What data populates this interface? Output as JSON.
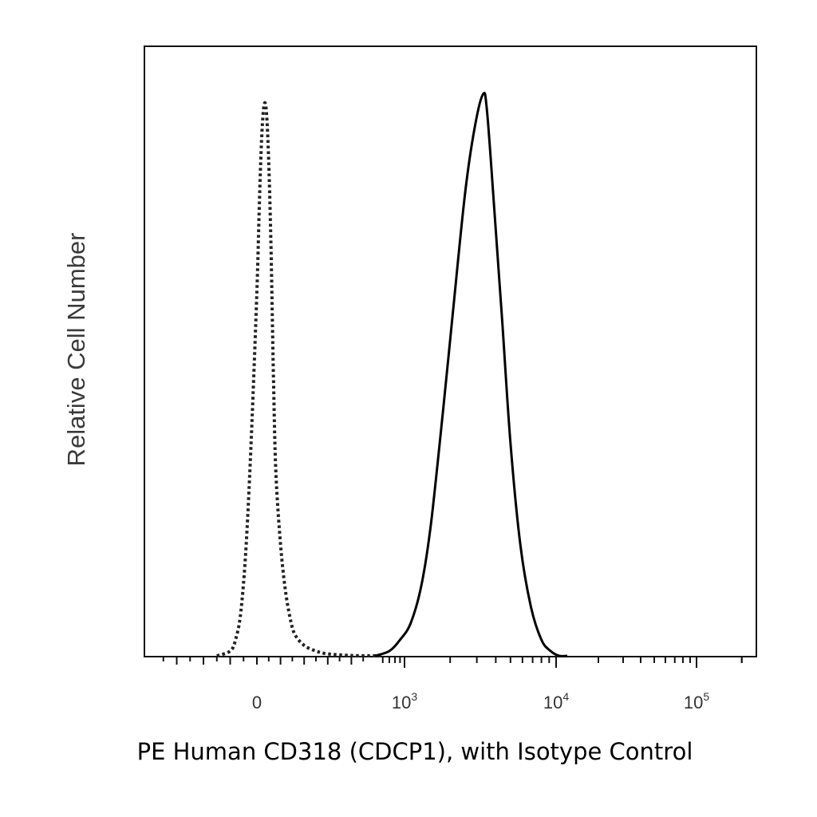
{
  "chart_data": {
    "type": "line",
    "title": "",
    "xlabel": "PE Human CD318 (CDCP1), with Isotype Control",
    "ylabel": "Relative Cell Number",
    "x_scale": "biexponential",
    "xlim": [
      -400,
      250000
    ],
    "ylim": [
      0,
      1.1
    ],
    "x_ticks": [
      {
        "value": 0,
        "base": "0",
        "exp": ""
      },
      {
        "value": 1000,
        "base": "10",
        "exp": "3"
      },
      {
        "value": 10000,
        "base": "10",
        "exp": "4"
      },
      {
        "value": 100000,
        "base": "10",
        "exp": "5"
      }
    ],
    "grid": false,
    "legend": "none",
    "series": [
      {
        "style": "dotted",
        "color": "#222222",
        "x": [
          -150,
          -100,
          -80,
          -60,
          -40,
          -20,
          0,
          10,
          20,
          30,
          40,
          50,
          60,
          70,
          80,
          100,
          120,
          140,
          160,
          200,
          250,
          300,
          400,
          500,
          600
        ],
        "y": [
          0,
          0.01,
          0.03,
          0.08,
          0.2,
          0.4,
          0.65,
          0.8,
          0.92,
          0.98,
          0.97,
          0.88,
          0.72,
          0.5,
          0.33,
          0.2,
          0.12,
          0.07,
          0.04,
          0.02,
          0.01,
          0.005,
          0.002,
          0.0,
          0.0
        ]
      },
      {
        "style": "solid",
        "color": "#000000",
        "x": [
          500,
          700,
          900,
          1100,
          1300,
          1500,
          1800,
          2100,
          2500,
          2900,
          3300,
          3500,
          3900,
          4400,
          5000,
          5800,
          6800,
          8000,
          9200,
          10500,
          12000
        ],
        "y": [
          0.0,
          0.01,
          0.03,
          0.06,
          0.13,
          0.24,
          0.44,
          0.62,
          0.82,
          0.94,
          1.0,
          0.97,
          0.8,
          0.6,
          0.38,
          0.2,
          0.09,
          0.03,
          0.01,
          0.0,
          0.0
        ]
      }
    ]
  }
}
